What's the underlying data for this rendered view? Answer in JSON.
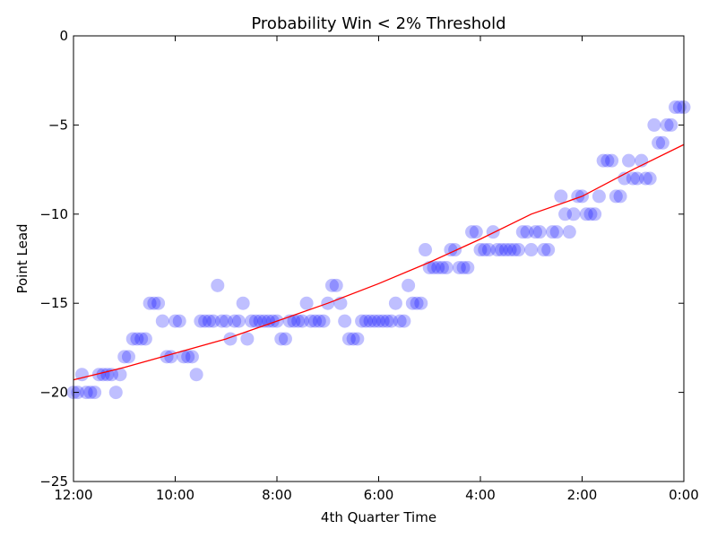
{
  "chart_data": {
    "type": "scatter",
    "title": "Probability Win < 2% Threshold",
    "xlabel": "4th Quarter Time",
    "ylabel": "Point Lead",
    "xlim": [
      720,
      0
    ],
    "ylim": [
      -25,
      0
    ],
    "x_ticks": [
      {
        "value": 720,
        "label": "12:00"
      },
      {
        "value": 600,
        "label": "10:00"
      },
      {
        "value": 480,
        "label": "8:00"
      },
      {
        "value": 360,
        "label": "6:00"
      },
      {
        "value": 240,
        "label": "4:00"
      },
      {
        "value": 120,
        "label": "2:00"
      },
      {
        "value": 0,
        "label": "0:00"
      }
    ],
    "y_ticks": [
      {
        "value": 0,
        "label": "0"
      },
      {
        "value": -5,
        "label": "−5"
      },
      {
        "value": -10,
        "label": "−10"
      },
      {
        "value": -15,
        "label": "−15"
      },
      {
        "value": -20,
        "label": "−20"
      },
      {
        "value": -25,
        "label": "−25"
      }
    ],
    "grid": false,
    "point_color": "#0000ff",
    "fit_color": "#ff0000",
    "points": [
      [
        720,
        -20
      ],
      [
        715,
        -20
      ],
      [
        710,
        -19
      ],
      [
        705,
        -20
      ],
      [
        700,
        -20
      ],
      [
        695,
        -20
      ],
      [
        690,
        -19
      ],
      [
        685,
        -19
      ],
      [
        680,
        -19
      ],
      [
        675,
        -19
      ],
      [
        670,
        -20
      ],
      [
        665,
        -19
      ],
      [
        660,
        -18
      ],
      [
        655,
        -18
      ],
      [
        650,
        -17
      ],
      [
        645,
        -17
      ],
      [
        640,
        -17
      ],
      [
        635,
        -17
      ],
      [
        630,
        -15
      ],
      [
        625,
        -15
      ],
      [
        620,
        -15
      ],
      [
        615,
        -16
      ],
      [
        610,
        -18
      ],
      [
        605,
        -18
      ],
      [
        600,
        -16
      ],
      [
        595,
        -16
      ],
      [
        590,
        -18
      ],
      [
        585,
        -18
      ],
      [
        580,
        -18
      ],
      [
        575,
        -19
      ],
      [
        570,
        -16
      ],
      [
        565,
        -16
      ],
      [
        560,
        -16
      ],
      [
        555,
        -16
      ],
      [
        550,
        -14
      ],
      [
        545,
        -16
      ],
      [
        540,
        -16
      ],
      [
        535,
        -17
      ],
      [
        530,
        -16
      ],
      [
        525,
        -16
      ],
      [
        520,
        -15
      ],
      [
        515,
        -17
      ],
      [
        510,
        -16
      ],
      [
        505,
        -16
      ],
      [
        500,
        -16
      ],
      [
        495,
        -16
      ],
      [
        490,
        -16
      ],
      [
        485,
        -16
      ],
      [
        480,
        -16
      ],
      [
        475,
        -17
      ],
      [
        470,
        -17
      ],
      [
        465,
        -16
      ],
      [
        460,
        -16
      ],
      [
        455,
        -16
      ],
      [
        450,
        -16
      ],
      [
        445,
        -15
      ],
      [
        440,
        -16
      ],
      [
        435,
        -16
      ],
      [
        430,
        -16
      ],
      [
        425,
        -16
      ],
      [
        420,
        -15
      ],
      [
        415,
        -14
      ],
      [
        410,
        -14
      ],
      [
        405,
        -15
      ],
      [
        400,
        -16
      ],
      [
        395,
        -17
      ],
      [
        390,
        -17
      ],
      [
        385,
        -17
      ],
      [
        380,
        -16
      ],
      [
        375,
        -16
      ],
      [
        370,
        -16
      ],
      [
        365,
        -16
      ],
      [
        360,
        -16
      ],
      [
        355,
        -16
      ],
      [
        350,
        -16
      ],
      [
        345,
        -16
      ],
      [
        340,
        -15
      ],
      [
        335,
        -16
      ],
      [
        330,
        -16
      ],
      [
        325,
        -14
      ],
      [
        320,
        -15
      ],
      [
        315,
        -15
      ],
      [
        310,
        -15
      ],
      [
        305,
        -12
      ],
      [
        300,
        -13
      ],
      [
        295,
        -13
      ],
      [
        290,
        -13
      ],
      [
        285,
        -13
      ],
      [
        280,
        -13
      ],
      [
        275,
        -12
      ],
      [
        270,
        -12
      ],
      [
        265,
        -13
      ],
      [
        260,
        -13
      ],
      [
        255,
        -13
      ],
      [
        250,
        -11
      ],
      [
        245,
        -11
      ],
      [
        240,
        -12
      ],
      [
        235,
        -12
      ],
      [
        230,
        -12
      ],
      [
        225,
        -11
      ],
      [
        220,
        -12
      ],
      [
        215,
        -12
      ],
      [
        210,
        -12
      ],
      [
        205,
        -12
      ],
      [
        200,
        -12
      ],
      [
        195,
        -12
      ],
      [
        190,
        -11
      ],
      [
        185,
        -11
      ],
      [
        180,
        -12
      ],
      [
        175,
        -11
      ],
      [
        170,
        -11
      ],
      [
        165,
        -12
      ],
      [
        160,
        -12
      ],
      [
        155,
        -11
      ],
      [
        150,
        -11
      ],
      [
        145,
        -9
      ],
      [
        140,
        -10
      ],
      [
        135,
        -11
      ],
      [
        130,
        -10
      ],
      [
        125,
        -9
      ],
      [
        120,
        -9
      ],
      [
        115,
        -10
      ],
      [
        110,
        -10
      ],
      [
        105,
        -10
      ],
      [
        100,
        -9
      ],
      [
        95,
        -7
      ],
      [
        90,
        -7
      ],
      [
        85,
        -7
      ],
      [
        80,
        -9
      ],
      [
        75,
        -9
      ],
      [
        70,
        -8
      ],
      [
        65,
        -7
      ],
      [
        60,
        -8
      ],
      [
        55,
        -8
      ],
      [
        50,
        -7
      ],
      [
        45,
        -8
      ],
      [
        40,
        -8
      ],
      [
        35,
        -5
      ],
      [
        30,
        -6
      ],
      [
        25,
        -6
      ],
      [
        20,
        -5
      ],
      [
        15,
        -5
      ],
      [
        10,
        -4
      ],
      [
        5,
        -4
      ],
      [
        0,
        -4
      ]
    ],
    "fit_curve": [
      [
        720,
        -19.3
      ],
      [
        660,
        -18.6
      ],
      [
        600,
        -17.8
      ],
      [
        540,
        -17.0
      ],
      [
        480,
        -16.0
      ],
      [
        420,
        -15.0
      ],
      [
        360,
        -13.9
      ],
      [
        300,
        -12.7
      ],
      [
        240,
        -11.4
      ],
      [
        180,
        -10.0
      ],
      [
        120,
        -9.0
      ],
      [
        60,
        -7.5
      ],
      [
        0,
        -6.1
      ]
    ]
  }
}
